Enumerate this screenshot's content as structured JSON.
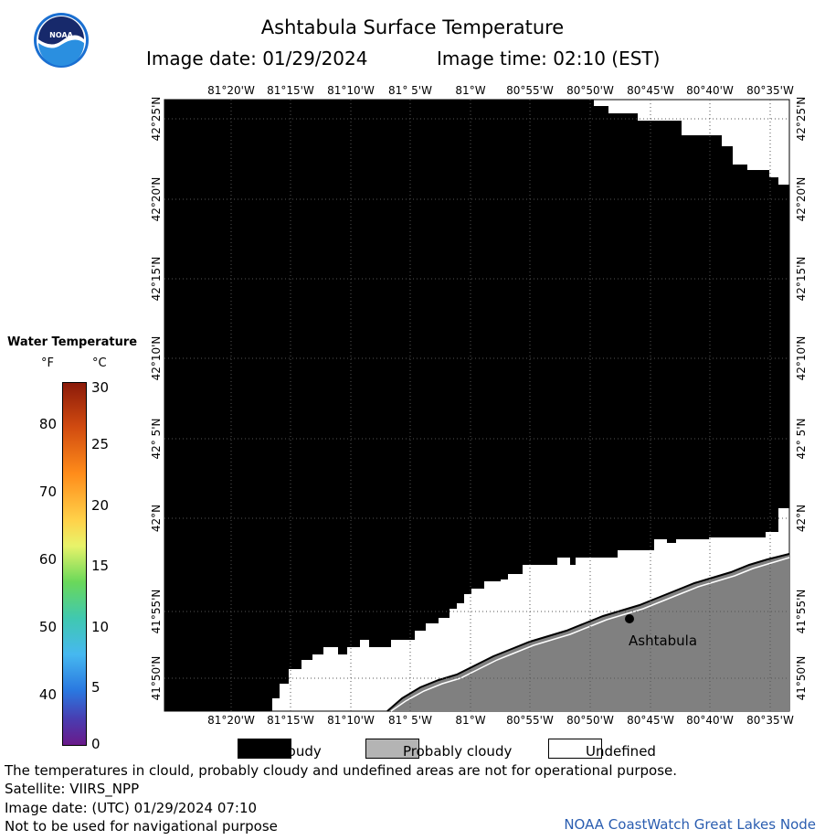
{
  "header": {
    "title": "Ashtabula Surface Temperature",
    "image_date": "Image date: 01/29/2024",
    "image_time": "Image time: 02:10 (EST)"
  },
  "logo": {
    "text": "NOAA",
    "icon": "noaa-logo-icon"
  },
  "map": {
    "lon_labels": [
      "81°20'W",
      "81°15'W",
      "81°10'W",
      "81° 5'W",
      "81°W",
      "80°55'W",
      "80°50'W",
      "80°45'W",
      "80°40'W",
      "80°35'W"
    ],
    "lat_labels": [
      "42°25'N",
      "42°20'N",
      "42°15'N",
      "42°10'N",
      "42° 5'N",
      "42°N",
      "41°55'N",
      "41°50'N"
    ],
    "city_label": "Ashtabula",
    "colors": {
      "cloudy": "#000000",
      "probably_cloudy": "#808080",
      "undefined": "#ffffff",
      "land": "#808080",
      "grid": "#555555"
    }
  },
  "legend": {
    "title": "Water Temperature",
    "unit_f": "°F",
    "unit_c": "°C",
    "f_ticks": [
      "80",
      "70",
      "60",
      "50",
      "40"
    ],
    "c_ticks": [
      "30",
      "25",
      "20",
      "15",
      "10",
      "5",
      "0"
    ],
    "cloudy_label": "Cloudy",
    "probably_cloudy_label": "Probably cloudy",
    "undefined_label": "Undefined"
  },
  "footer": {
    "note": "The temperatures in clould, probably cloudy and undefined areas are not for operational purpose.",
    "satellite": "Satellite: VIIRS_NPP",
    "utc_date": "Image date: (UTC) 01/29/2024  07:10",
    "warning": "Not to be used for navigational purpose",
    "credit": "NOAA CoastWatch Great Lakes Node"
  }
}
